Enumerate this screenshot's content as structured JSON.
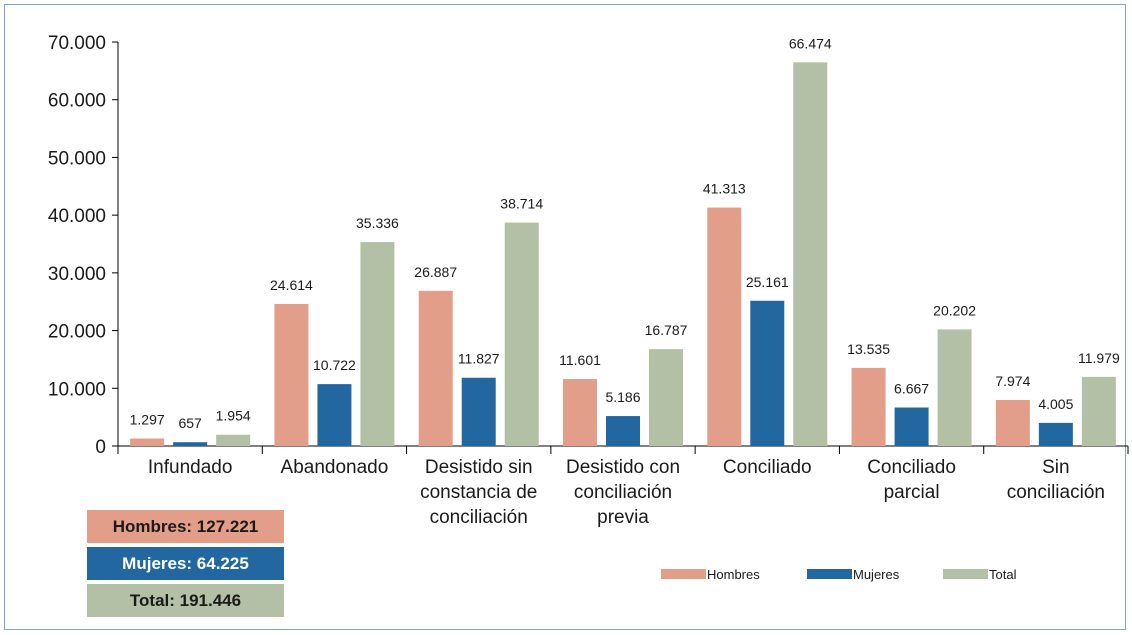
{
  "chart_data": {
    "type": "bar",
    "categories": [
      "Infundado",
      "Abandonado",
      "Desistido sin constancia de conciliación",
      "Desistido con conciliación previa",
      "Conciliado",
      "Conciliado parcial",
      "Sin conciliación"
    ],
    "category_lines": [
      [
        "Infundado"
      ],
      [
        "Abandonado"
      ],
      [
        "Desistido sin",
        "constancia de",
        "conciliación"
      ],
      [
        "Desistido con",
        "conciliación",
        "previa"
      ],
      [
        "Conciliado"
      ],
      [
        "Conciliado",
        "parcial"
      ],
      [
        "Sin",
        "conciliación"
      ]
    ],
    "series": [
      {
        "name": "Hombres",
        "color": "#e29e89",
        "values": [
          1297,
          24614,
          26887,
          11601,
          41313,
          13535,
          7974
        ],
        "labels": [
          "1.297",
          "24.614",
          "26.887",
          "11.601",
          "41.313",
          "13.535",
          "7.974"
        ]
      },
      {
        "name": "Mujeres",
        "color": "#2267a0",
        "values": [
          657,
          10722,
          11827,
          5186,
          25161,
          6667,
          4005
        ],
        "labels": [
          "657",
          "10.722",
          "11.827",
          "5.186",
          "25.161",
          "6.667",
          "4.005"
        ]
      },
      {
        "name": "Total",
        "color": "#b4c0a6",
        "values": [
          1954,
          35336,
          38714,
          16787,
          66474,
          20202,
          11979
        ],
        "labels": [
          "1.954",
          "35.336",
          "38.714",
          "16.787",
          "66.474",
          "20.202",
          "11.979"
        ]
      }
    ],
    "ylim": [
      0,
      70000
    ],
    "yticks": [
      0,
      10000,
      20000,
      30000,
      40000,
      50000,
      60000,
      70000
    ],
    "ytick_labels": [
      "0",
      "10.000",
      "20.000",
      "30.000",
      "40.000",
      "50.000",
      "60.000",
      "70.000"
    ],
    "legend_position": "bottom-right",
    "grid": false
  },
  "summary": {
    "hombres": "Hombres: 127.221",
    "mujeres": "Mujeres: 64.225",
    "total": "Total: 191.446"
  },
  "colors": {
    "hombres": "#e29e89",
    "mujeres": "#2267a0",
    "total": "#b4c0a6"
  }
}
